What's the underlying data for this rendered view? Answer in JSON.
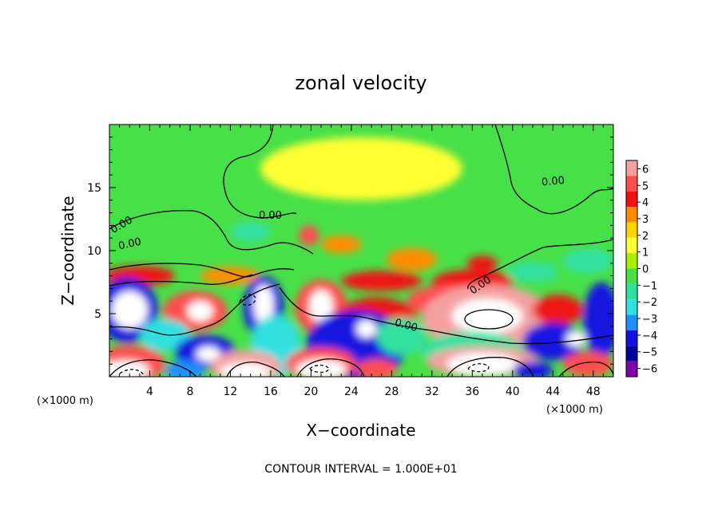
{
  "chart_data": {
    "type": "heatmap",
    "title": "zonal velocity",
    "xlabel": "X−coordinate",
    "ylabel": "Z−coordinate",
    "x_unit": "(×1000 m)",
    "x_unit_right": "(×1000 m)",
    "xlim": [
      0,
      50
    ],
    "ylim": [
      0,
      20
    ],
    "x_ticks": [
      4,
      8,
      12,
      16,
      20,
      24,
      28,
      32,
      36,
      40,
      44,
      48
    ],
    "x_tick_labels": [
      "4",
      "8",
      "12",
      "16",
      "20",
      "24",
      "28",
      "32",
      "36",
      "40",
      "44",
      "48"
    ],
    "y_ticks": [
      5,
      10,
      15
    ],
    "y_tick_labels": [
      "5",
      "10",
      "15"
    ],
    "colorbar": {
      "levels": [
        6,
        5,
        4,
        3,
        2,
        1,
        0,
        -1,
        -2,
        -3,
        -4,
        -5,
        -6
      ],
      "level_labels": [
        "6",
        "5",
        "4",
        "3",
        "2",
        "1",
        "0",
        "−1",
        "−2",
        "−3",
        "−4",
        "−5",
        "−6"
      ],
      "colors": [
        "#f4a0a0",
        "#ff4e4e",
        "#ee1212",
        "#ff8c00",
        "#ffd500",
        "#ffff33",
        "#a8f000",
        "#48e048",
        "#30e0a0",
        "#30e0e0",
        "#1e90ff",
        "#1212e0",
        "#00009a",
        "#8200aa"
      ]
    },
    "contour_labels": [
      "0.00",
      "0.00",
      "0.00",
      "0.00",
      "0.00",
      "0.00"
    ],
    "footer": "CONTOUR INTERVAL = 1.000E+01",
    "field_blobs": [
      {
        "x": 25,
        "y": 16.5,
        "rx": 10,
        "ry": 2.5,
        "v": 0.6
      },
      {
        "x": 14,
        "y": 11.5,
        "rx": 2,
        "ry": 0.8,
        "v": -2.2
      },
      {
        "x": 19.8,
        "y": 11.2,
        "rx": 1.0,
        "ry": 0.8,
        "v": 4.5
      },
      {
        "x": 23,
        "y": 10.5,
        "rx": 2,
        "ry": 0.7,
        "v": 3.0
      },
      {
        "x": 30,
        "y": 9.3,
        "rx": 2.5,
        "ry": 0.9,
        "v": 2.3
      },
      {
        "x": 37,
        "y": 9.0,
        "rx": 1.5,
        "ry": 0.6,
        "v": 3.2
      },
      {
        "x": 42,
        "y": 8.3,
        "rx": 2.5,
        "ry": 0.8,
        "v": -2.8
      },
      {
        "x": 47.5,
        "y": 9.2,
        "rx": 2.5,
        "ry": 1,
        "v": -2.6
      },
      {
        "x": 3,
        "y": 8.0,
        "rx": 3.5,
        "ry": 0.8,
        "v": 3.5
      },
      {
        "x": 12,
        "y": 8.0,
        "rx": 3,
        "ry": 0.7,
        "v": 2.5
      },
      {
        "x": 27,
        "y": 7.6,
        "rx": 4,
        "ry": 0.8,
        "v": 3.2
      },
      {
        "x": 36,
        "y": 7.5,
        "rx": 4,
        "ry": 1.0,
        "v": 4.0
      },
      {
        "x": 1.8,
        "y": 5.3,
        "rx": 3,
        "ry": 2.6,
        "v": -5.2
      },
      {
        "x": 2,
        "y": 5.3,
        "rx": 1.8,
        "ry": 1.5,
        "v": -9
      },
      {
        "x": 8.5,
        "y": 5.2,
        "rx": 3.2,
        "ry": 1.6,
        "v": 4.8
      },
      {
        "x": 9.0,
        "y": 5.2,
        "rx": 1.3,
        "ry": 0.8,
        "v": 9
      },
      {
        "x": 15.3,
        "y": 5.5,
        "rx": 2.0,
        "ry": 2.5,
        "v": -5.5
      },
      {
        "x": 15.3,
        "y": 5.7,
        "rx": 1.0,
        "ry": 1.6,
        "v": -9
      },
      {
        "x": 21.0,
        "y": 5.5,
        "rx": 2.6,
        "ry": 2.2,
        "v": 5.0
      },
      {
        "x": 21.0,
        "y": 5.6,
        "rx": 1.2,
        "ry": 1.3,
        "v": 9
      },
      {
        "x": 26.5,
        "y": 4.5,
        "rx": 4,
        "ry": 1.8,
        "v": 3.2
      },
      {
        "x": 34,
        "y": 6.0,
        "rx": 4.5,
        "ry": 1.3,
        "v": 4.5
      },
      {
        "x": 37.5,
        "y": 4.7,
        "rx": 6.5,
        "ry": 2.6,
        "v": 5.3
      },
      {
        "x": 37.5,
        "y": 4.8,
        "rx": 3.5,
        "ry": 1.4,
        "v": 9
      },
      {
        "x": 44.5,
        "y": 5.3,
        "rx": 2.5,
        "ry": 1.2,
        "v": 4.0
      },
      {
        "x": 48.8,
        "y": 4.5,
        "rx": 1.8,
        "ry": 3,
        "v": -5.5
      },
      {
        "x": 5.5,
        "y": 3.3,
        "rx": 2.5,
        "ry": 1.3,
        "v": -3.2
      },
      {
        "x": 9.5,
        "y": 2.0,
        "rx": 3,
        "ry": 1.3,
        "v": -5.0
      },
      {
        "x": 9.8,
        "y": 1.8,
        "rx": 1.2,
        "ry": 0.6,
        "v": -9
      },
      {
        "x": 16.5,
        "y": 2.4,
        "rx": 2.5,
        "ry": 2.5,
        "v": -3.5
      },
      {
        "x": 24.5,
        "y": 2.5,
        "rx": 5,
        "ry": 2.8,
        "v": -5.0
      },
      {
        "x": 25.5,
        "y": 3.8,
        "rx": 1.0,
        "ry": 0.7,
        "v": -7
      },
      {
        "x": 29,
        "y": 3.2,
        "rx": 2.5,
        "ry": 1.5,
        "v": -2.0
      },
      {
        "x": 36,
        "y": 2.0,
        "rx": 5,
        "ry": 1.6,
        "v": -2.8
      },
      {
        "x": 44,
        "y": 2.8,
        "rx": 3,
        "ry": 1.5,
        "v": -5.0
      },
      {
        "x": 46.3,
        "y": 3.0,
        "rx": 1.0,
        "ry": 0.6,
        "v": -9
      },
      {
        "x": 2,
        "y": 1.0,
        "rx": 3.5,
        "ry": 1.5,
        "v": 5.0
      },
      {
        "x": 1.5,
        "y": 0.5,
        "rx": 2.5,
        "ry": 0.8,
        "v": 9
      },
      {
        "x": 7.5,
        "y": 0.5,
        "rx": 2,
        "ry": 0.8,
        "v": -4.5
      },
      {
        "x": 13.5,
        "y": 0.8,
        "rx": 3.5,
        "ry": 1.3,
        "v": 5.2
      },
      {
        "x": 13.5,
        "y": 0.4,
        "rx": 2.5,
        "ry": 0.7,
        "v": 9
      },
      {
        "x": 21.0,
        "y": 1.0,
        "rx": 3.5,
        "ry": 1.3,
        "v": 5.0
      },
      {
        "x": 21.0,
        "y": 0.6,
        "rx": 2.5,
        "ry": 0.8,
        "v": 9
      },
      {
        "x": 26.5,
        "y": 0.6,
        "rx": 2,
        "ry": 0.8,
        "v": 4.5
      },
      {
        "x": 37.0,
        "y": 1.2,
        "rx": 5.5,
        "ry": 1.2,
        "v": 5.2
      },
      {
        "x": 37.0,
        "y": 1.0,
        "rx": 3.5,
        "ry": 0.9,
        "v": 9
      },
      {
        "x": 42,
        "y": 0.5,
        "rx": 2,
        "ry": 0.7,
        "v": -5.0
      },
      {
        "x": 47.5,
        "y": 1.0,
        "rx": 2.5,
        "ry": 1.0,
        "v": 4.5
      }
    ]
  }
}
